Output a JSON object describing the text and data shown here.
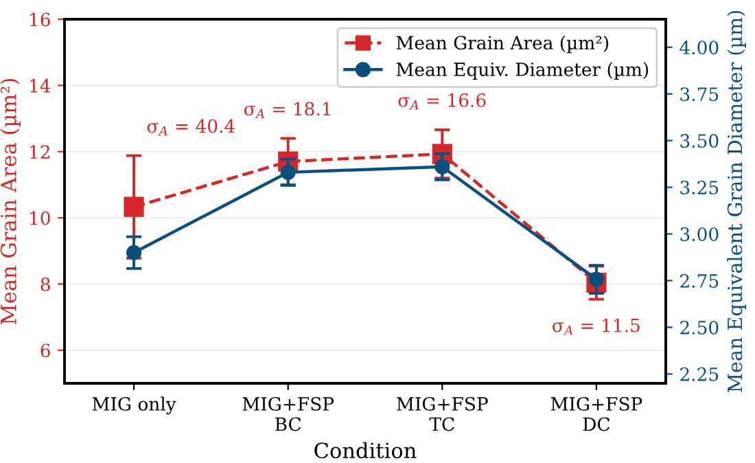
{
  "chart_data": {
    "type": "line",
    "xlabel": "Condition",
    "ylabel": "Mean Grain Area (µm²)",
    "y2label": "Mean Equivalent Grain Diameter (µm)",
    "categories": [
      "MIG only",
      "MIG+FSP\nBC",
      "MIG+FSP\nTC",
      "MIG+FSP\nDC"
    ],
    "series": [
      {
        "name": "Mean Grain Area (µm²)",
        "color": "#d62728",
        "values": [
          10.33,
          11.7,
          11.93,
          8.04
        ],
        "errors": [
          1.55,
          0.7,
          0.73,
          0.5
        ],
        "marker": "square",
        "line_style": "dashed"
      },
      {
        "name": "Mean Equiv. Diameter (µm)",
        "color": "#0b4f80",
        "axis": "y2",
        "values": [
          2.9,
          3.33,
          3.36,
          2.757
        ],
        "errors": [
          0.085,
          0.07,
          0.07,
          0.075
        ],
        "marker": "circle",
        "line_style": "solid"
      }
    ],
    "ylim": [
      5,
      16
    ],
    "yticks": [
      6,
      8,
      10,
      12,
      14,
      16
    ],
    "y2lim": [
      2.2,
      4.15
    ],
    "y2ticks": [
      {
        "value": 2.25,
        "label": "2.25"
      },
      {
        "value": 2.5,
        "label": "2.50"
      },
      {
        "value": 2.75,
        "label": "2.75"
      },
      {
        "value": 3.0,
        "label": "3.00"
      },
      {
        "value": 3.25,
        "label": "3.25"
      },
      {
        "value": 3.5,
        "label": "3.50"
      },
      {
        "value": 3.75,
        "label": "3.75"
      },
      {
        "value": 4.0,
        "label": "4.00"
      }
    ],
    "grid": "y",
    "legend": "top right",
    "annotations": [
      "σ$_{A}$ = 40.4",
      "σ$_{A}$ = 18.1",
      "σ$_{A}$ = 16.6",
      "σ$_{A}$ = 11.5"
    ]
  }
}
